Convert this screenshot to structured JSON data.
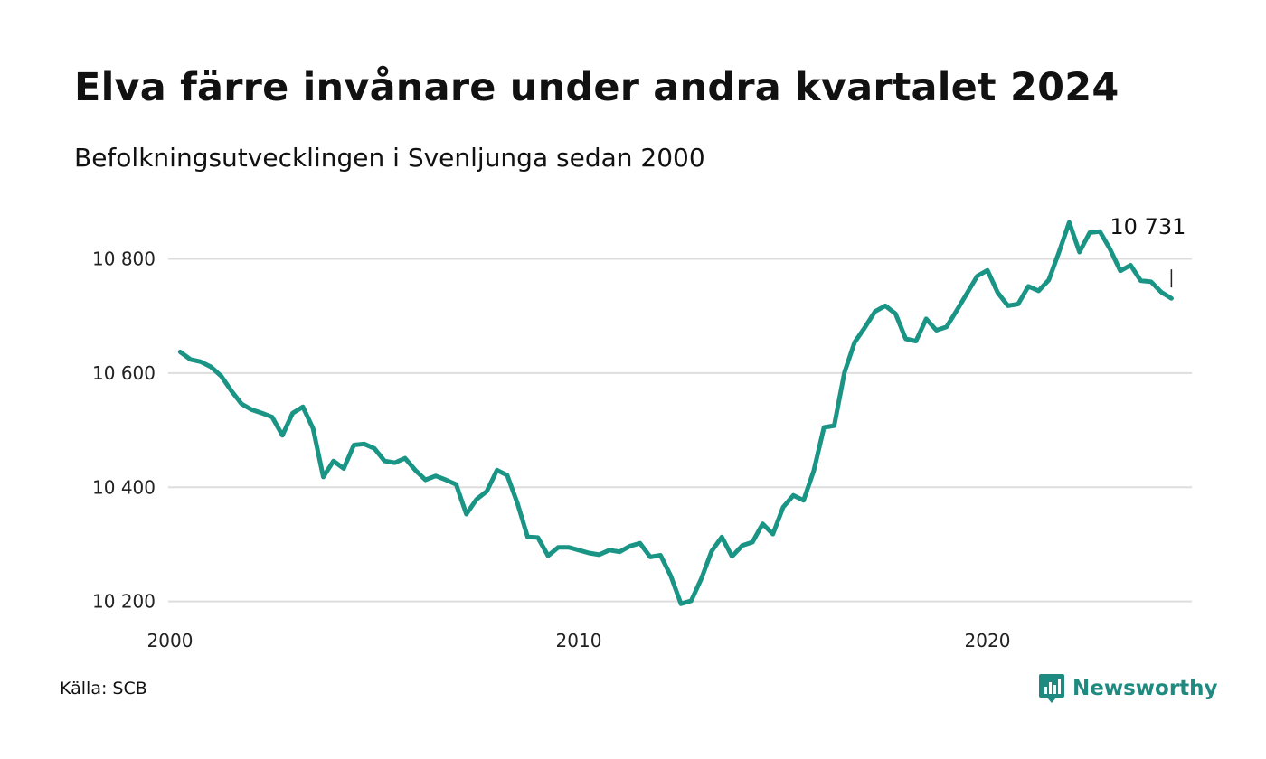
{
  "header": {
    "title": "Elva färre invånare under andra kvartalet 2024",
    "subtitle": "Befolkningsutvecklingen i Svenljunga sedan 2000"
  },
  "footer": {
    "source": "Källa: SCB",
    "brand": "Newsworthy"
  },
  "colors": {
    "line": "#1a9485",
    "grid": "#dddddd",
    "brand": "#1e8a80"
  },
  "chart_data": {
    "type": "line",
    "title": "Elva färre invånare under andra kvartalet 2024",
    "subtitle": "Befolkningsutvecklingen i Svenljunga sedan 2000",
    "xlabel": "",
    "ylabel": "",
    "x_ticks": [
      2000,
      2010,
      2020
    ],
    "x_tick_labels": [
      "2000",
      "2010",
      "2020"
    ],
    "y_ticks": [
      10200,
      10400,
      10600,
      10800
    ],
    "y_tick_labels": [
      "10 200",
      "10 400",
      "10 600",
      "10 800"
    ],
    "xlim": [
      2000.0,
      2025.0
    ],
    "ylim": [
      10190,
      10880
    ],
    "grid": "horizontal",
    "last_value_label": "10 731",
    "x": [
      2000.25,
      2000.5,
      2000.75,
      2001.0,
      2001.25,
      2001.5,
      2001.75,
      2002.0,
      2002.25,
      2002.5,
      2002.75,
      2003.0,
      2003.25,
      2003.5,
      2003.75,
      2004.0,
      2004.25,
      2004.5,
      2004.75,
      2005.0,
      2005.25,
      2005.5,
      2005.75,
      2006.0,
      2006.25,
      2006.5,
      2006.75,
      2007.0,
      2007.25,
      2007.5,
      2007.75,
      2008.0,
      2008.25,
      2008.5,
      2008.75,
      2009.0,
      2009.25,
      2009.5,
      2009.75,
      2010.0,
      2010.25,
      2010.5,
      2010.75,
      2011.0,
      2011.25,
      2011.5,
      2011.75,
      2012.0,
      2012.25,
      2012.5,
      2012.75,
      2013.0,
      2013.25,
      2013.5,
      2013.75,
      2014.0,
      2014.25,
      2014.5,
      2014.75,
      2015.0,
      2015.25,
      2015.5,
      2015.75,
      2016.0,
      2016.25,
      2016.5,
      2016.75,
      2017.0,
      2017.25,
      2017.5,
      2017.75,
      2018.0,
      2018.25,
      2018.5,
      2018.75,
      2019.0,
      2019.25,
      2019.5,
      2019.75,
      2020.0,
      2020.25,
      2020.5,
      2020.75,
      2021.0,
      2021.25,
      2021.5,
      2021.75,
      2022.0,
      2022.25,
      2022.5,
      2022.75,
      2023.0,
      2023.25,
      2023.5,
      2023.75,
      2024.0,
      2024.25,
      2024.5
    ],
    "series": [
      {
        "values": [
          10637,
          10624,
          10620,
          10611,
          10595,
          10569,
          10546,
          10536,
          10530,
          10523,
          10491,
          10530,
          10541,
          10503,
          10418,
          10446,
          10433,
          10474,
          10476,
          10468,
          10446,
          10443,
          10451,
          10430,
          10413,
          10420,
          10413,
          10405,
          10353,
          10379,
          10393,
          10430,
          10421,
          10372,
          10313,
          10312,
          10280,
          10295,
          10295,
          10290,
          10285,
          10282,
          10290,
          10287,
          10297,
          10302,
          10278,
          10281,
          10245,
          10196,
          10201,
          10240,
          10288,
          10313,
          10279,
          10298,
          10304,
          10336,
          10318,
          10365,
          10386,
          10377,
          10429,
          10505,
          10508,
          10601,
          10654,
          10680,
          10708,
          10718,
          10704,
          10660,
          10656,
          10695,
          10675,
          10681,
          10710,
          10740,
          10770,
          10780,
          10741,
          10718,
          10721,
          10752,
          10744,
          10763,
          10812,
          10864,
          10812,
          10846,
          10848,
          10817,
          10779,
          10789,
          10762,
          10760,
          10742,
          10731
        ]
      }
    ]
  }
}
